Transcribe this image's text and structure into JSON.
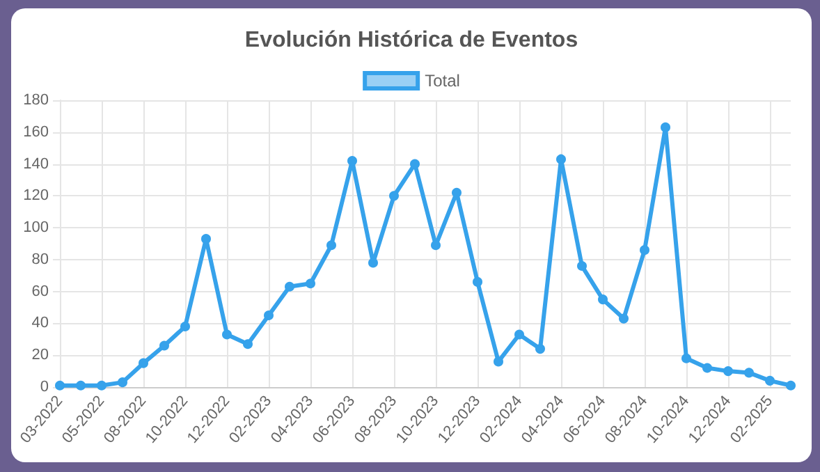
{
  "chart_data": {
    "type": "line",
    "title": "Evolución Histórica de Eventos",
    "categories": [
      "03-2022",
      null,
      "05-2022",
      null,
      "08-2022",
      null,
      "10-2022",
      null,
      "12-2022",
      null,
      "02-2023",
      null,
      "04-2023",
      null,
      "06-2023",
      null,
      "08-2023",
      null,
      "10-2023",
      null,
      "12-2023",
      null,
      "02-2024",
      null,
      "04-2024",
      null,
      "06-2024",
      null,
      "08-2024",
      null,
      "10-2024",
      null,
      "12-2024",
      null,
      "02-2025",
      null
    ],
    "series": [
      {
        "name": "Total",
        "color": "#36a2eb",
        "values": [
          1,
          1,
          1,
          3,
          15,
          26,
          38,
          93,
          33,
          27,
          45,
          63,
          65,
          89,
          142,
          78,
          120,
          140,
          89,
          122,
          66,
          16,
          33,
          24,
          143,
          76,
          55,
          43,
          86,
          163,
          18,
          12,
          10,
          9,
          4,
          1
        ]
      }
    ],
    "ylim": [
      0,
      180
    ],
    "yticks": [
      0,
      20,
      40,
      60,
      80,
      100,
      120,
      140,
      160,
      180
    ],
    "grid": true,
    "legend": "top",
    "marker": "circle"
  }
}
